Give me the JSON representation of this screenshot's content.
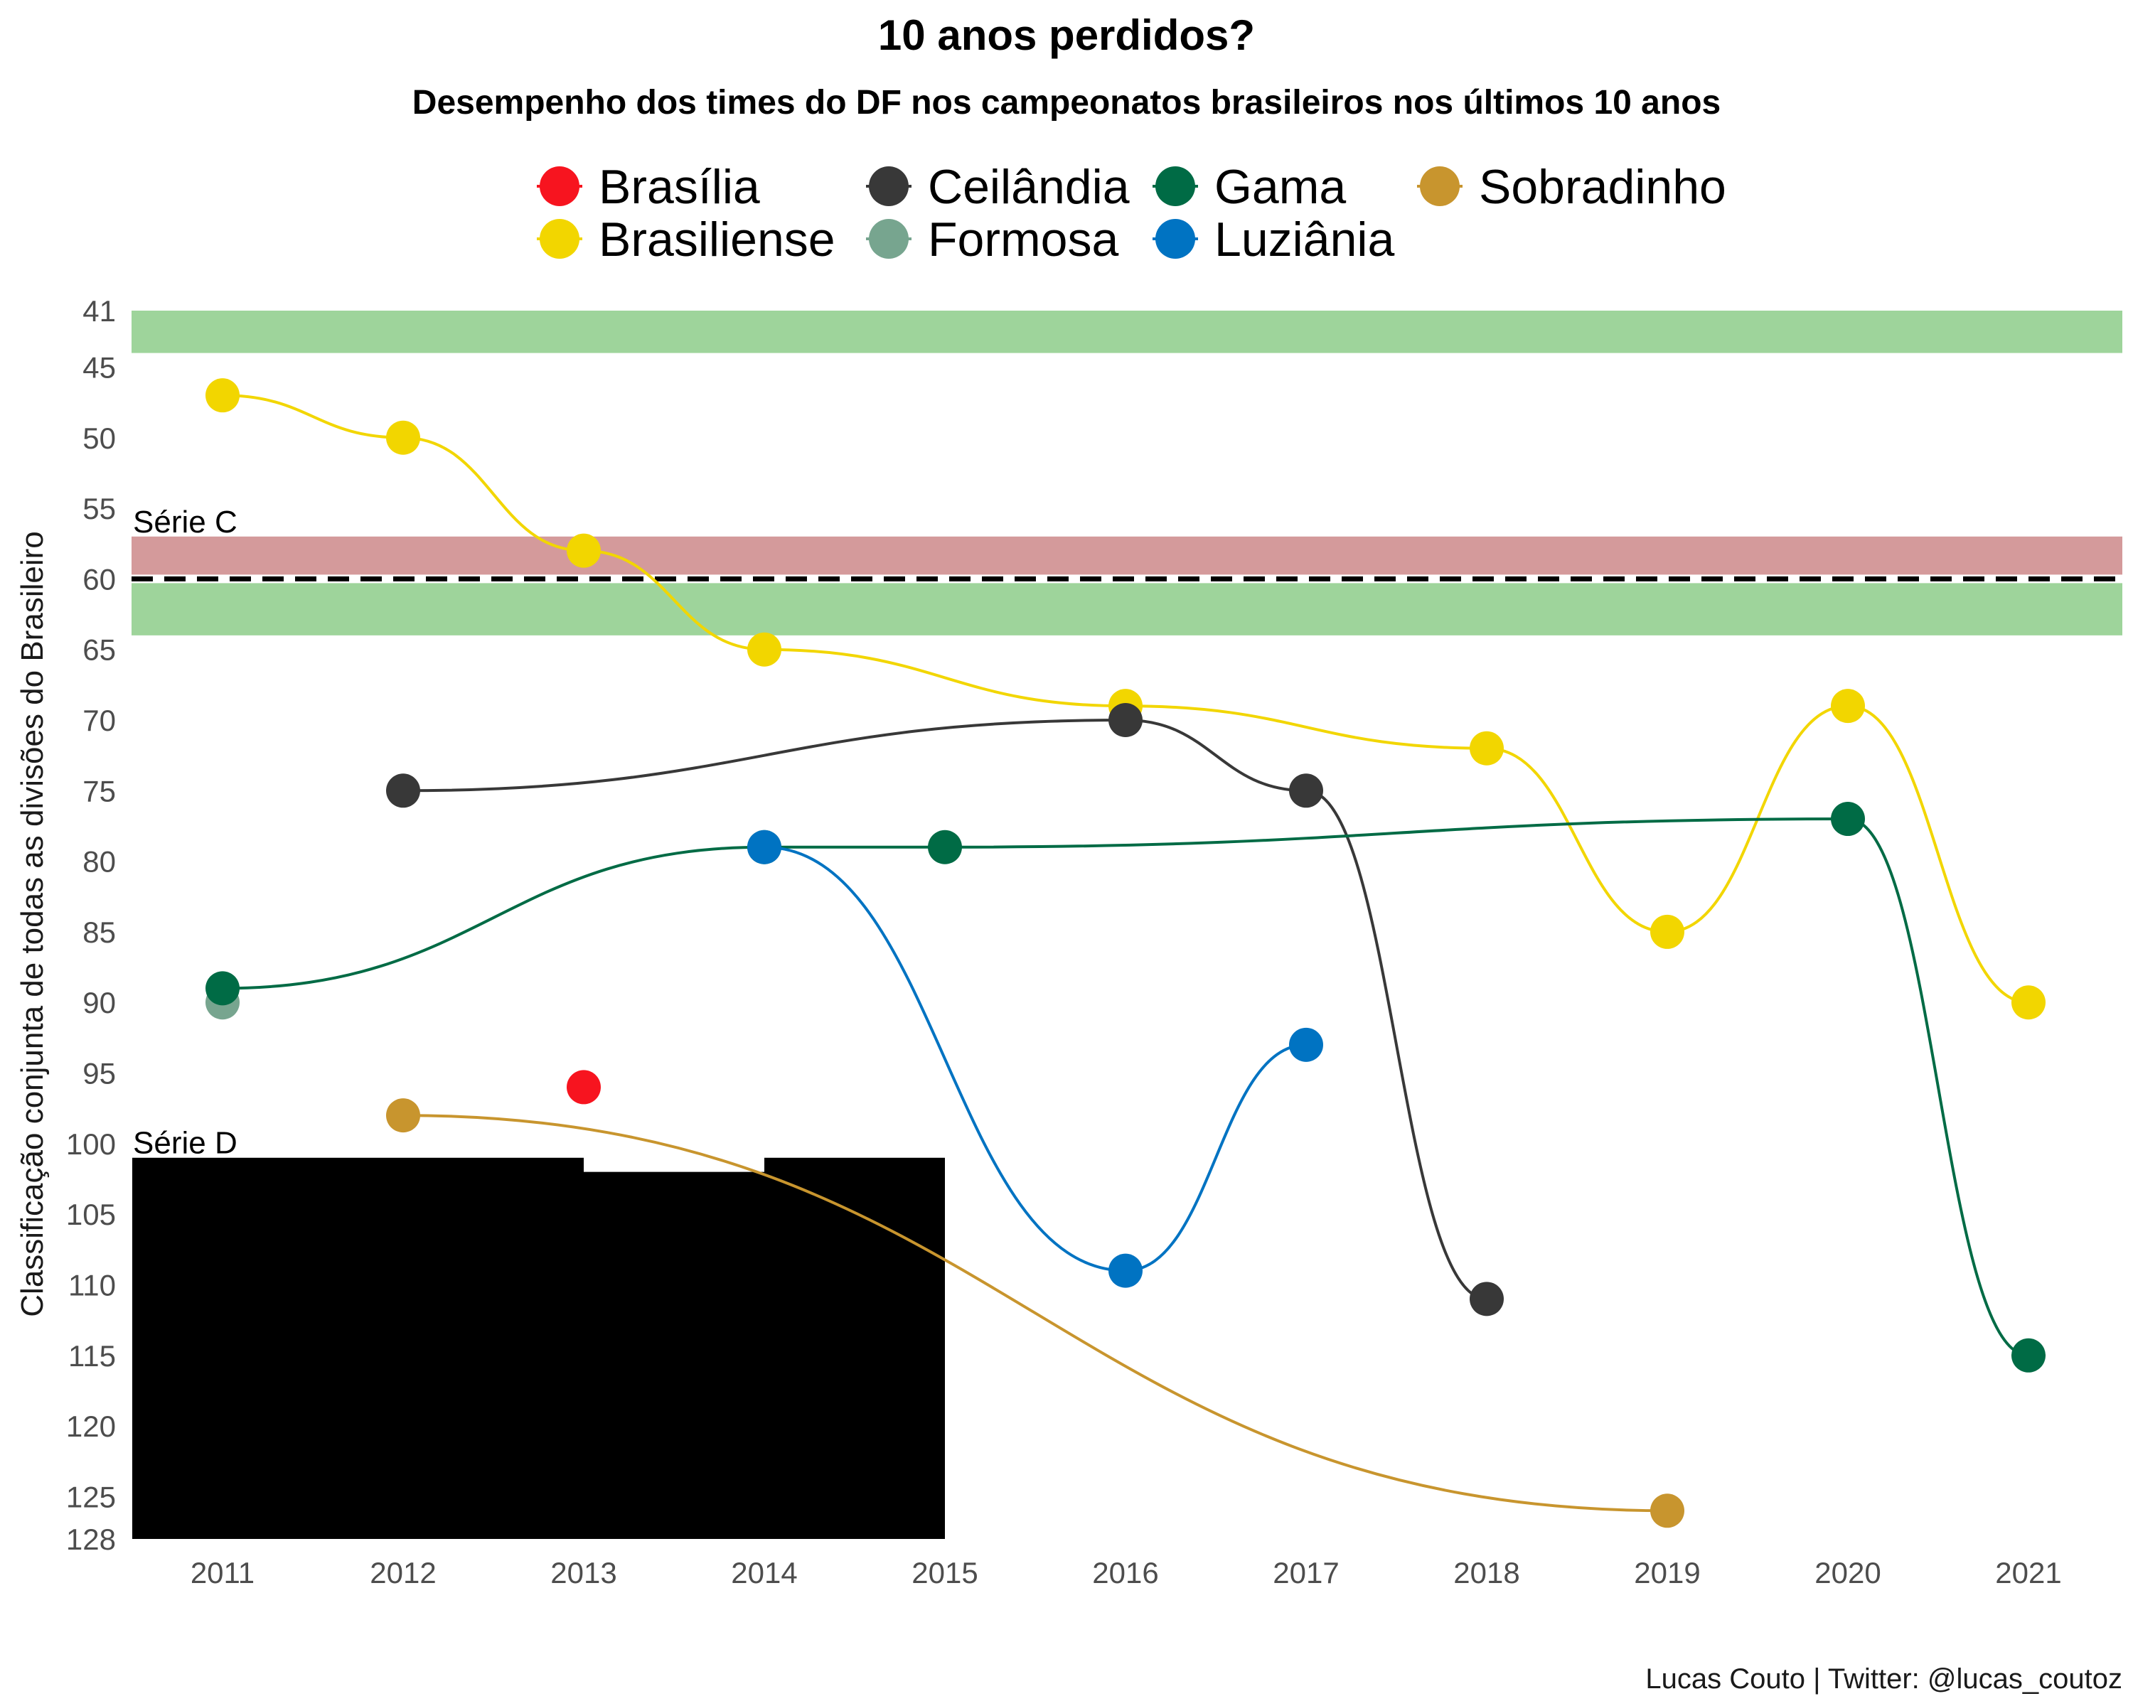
{
  "chart_data": {
    "type": "line",
    "title": "10 anos perdidos?",
    "subtitle": "Desempenho dos times do DF nos campeonatos brasileiros nos últimos 10 anos",
    "ylabel": "Classificação conjunta de todas as divisões do Brasileiro",
    "xlabel": "",
    "caption": "Lucas Couto | Twitter: @lucas_coutoz",
    "x_ticks": [
      "2011",
      "2012",
      "2013",
      "2014",
      "2015",
      "2016",
      "2017",
      "2018",
      "2019",
      "2020",
      "2021"
    ],
    "y_ticks": [
      41,
      45,
      50,
      55,
      60,
      65,
      70,
      75,
      80,
      85,
      90,
      95,
      100,
      105,
      110,
      115,
      120,
      125,
      128
    ],
    "ylim": [
      41,
      128
    ],
    "y_reversed": true,
    "grid": false,
    "legend_position": "top",
    "reference_line": {
      "y": 60,
      "style": "dashed",
      "color": "#000000"
    },
    "bands": [
      {
        "y_from": 41,
        "y_to": 44,
        "color": "#9ed49b"
      },
      {
        "y_from": 57,
        "y_to": 60,
        "color": "#d49a9b"
      },
      {
        "y_from": 60,
        "y_to": 64,
        "color": "#9ed49b"
      },
      {
        "y_from": 101,
        "y_to": 128,
        "x_from": 2010.5,
        "x_to": 2015,
        "notch_x_from": 2013,
        "notch_x_to": 2014,
        "notch_y": 102,
        "color": "#000000"
      }
    ],
    "band_labels": [
      {
        "text": "Série C",
        "y": 57
      },
      {
        "text": "Série D",
        "y": 101
      }
    ],
    "series": [
      {
        "name": "Brasília",
        "color": "#f7141f",
        "points": [
          [
            2013,
            96
          ]
        ]
      },
      {
        "name": "Brasiliense",
        "color": "#f2d600",
        "points": [
          [
            2011,
            47
          ],
          [
            2012,
            50
          ],
          [
            2013,
            58
          ],
          [
            2014,
            65
          ],
          [
            2016,
            69
          ],
          [
            2018,
            72
          ],
          [
            2019,
            85
          ],
          [
            2020,
            69
          ],
          [
            2021,
            90
          ]
        ]
      },
      {
        "name": "Ceilândia",
        "color": "#383838",
        "points": [
          [
            2012,
            75
          ],
          [
            2016,
            70
          ],
          [
            2017,
            75
          ],
          [
            2018,
            111
          ]
        ]
      },
      {
        "name": "Formosa",
        "color": "#77a58f",
        "points": [
          [
            2011,
            90
          ]
        ]
      },
      {
        "name": "Gama",
        "color": "#006b45",
        "points": [
          [
            2011,
            89
          ],
          [
            2014,
            79
          ],
          [
            2015,
            79
          ],
          [
            2020,
            77
          ],
          [
            2021,
            115
          ]
        ]
      },
      {
        "name": "Luziânia",
        "color": "#0073c2",
        "points": [
          [
            2014,
            79
          ],
          [
            2016,
            109
          ],
          [
            2017,
            93
          ]
        ]
      },
      {
        "name": "Sobradinho",
        "color": "#c8952e",
        "points": [
          [
            2012,
            98
          ],
          [
            2019,
            126
          ]
        ]
      }
    ]
  }
}
